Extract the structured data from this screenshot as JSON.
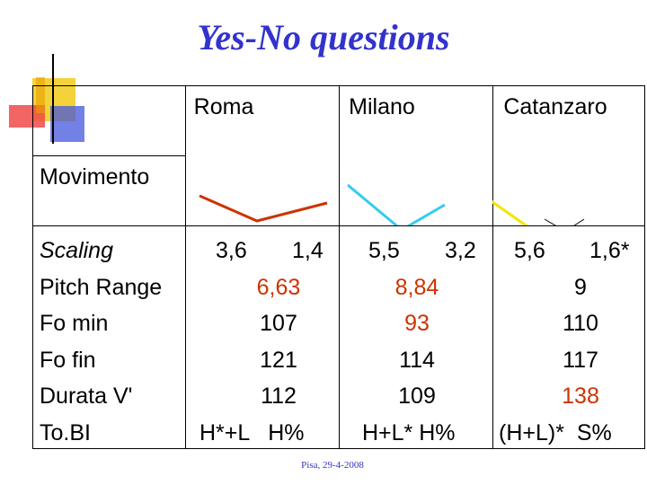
{
  "title": "Yes-No questions",
  "columns": [
    "Roma",
    "Milano",
    "Catanzaro"
  ],
  "rows": {
    "movimento": "Movimento",
    "scaling": "Scaling",
    "pitch_range": "Pitch Range",
    "fo_min": "Fo min",
    "fo_fin": "Fo fin",
    "durata": "Durata V'",
    "tobi": "To.BI"
  },
  "scaling": {
    "roma": [
      "3,6",
      "1,4"
    ],
    "milano": [
      "5,5",
      "3,2"
    ],
    "catanzaro": [
      "5,6",
      "1,6*"
    ]
  },
  "pitch_range": [
    "6,63",
    "8,84",
    "9"
  ],
  "fo_min": [
    "107",
    "93",
    "110"
  ],
  "fo_fin": [
    "121",
    "114",
    "117"
  ],
  "durata": [
    "112",
    "109",
    "138"
  ],
  "tobi": [
    "H*+L   H%",
    "H+L* H%",
    "(H+L)*  S%"
  ],
  "footer": "Pisa, 29-4-2008",
  "colors": {
    "title": "#3333cc",
    "roma_line": "#cc3300",
    "milano_line": "#33ccee",
    "catanzaro_line": "#f2e600",
    "highlight": "#cc3300"
  }
}
